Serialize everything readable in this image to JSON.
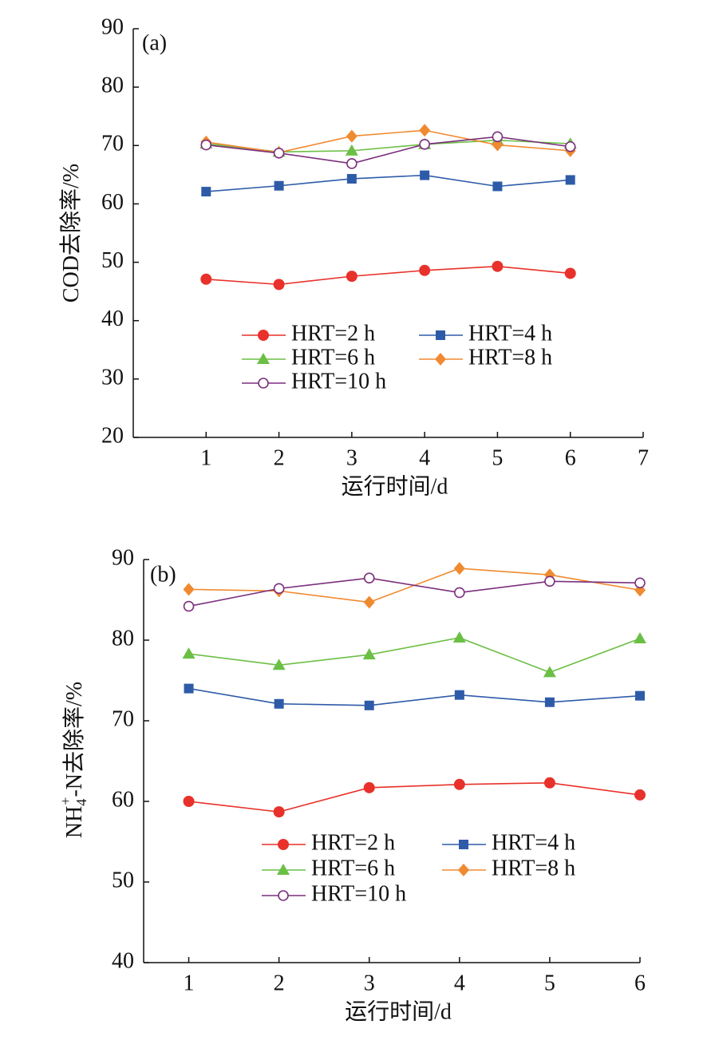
{
  "chart_data": [
    {
      "type": "line",
      "annotation": "(a)",
      "xlabel": "运行时间/d",
      "ylabel": [
        "COD去除率/%"
      ],
      "x": [
        1,
        2,
        3,
        4,
        5,
        6
      ],
      "xlim": [
        0,
        7
      ],
      "xticks": [
        1,
        2,
        3,
        4,
        5,
        6,
        7
      ],
      "ylim": [
        20,
        90
      ],
      "yticks": [
        20,
        30,
        40,
        50,
        60,
        70,
        80,
        90
      ],
      "series": [
        {
          "name": "HRT=2 h",
          "color": "#e8312a",
          "marker": "circle",
          "values": [
            47.1,
            46.2,
            47.6,
            48.6,
            49.3,
            48.1
          ]
        },
        {
          "name": "HRT=4 h",
          "color": "#2e5ba8",
          "marker": "square",
          "values": [
            62.1,
            63.1,
            64.3,
            64.9,
            63.0,
            64.1
          ]
        },
        {
          "name": "HRT=6 h",
          "color": "#6cbf45",
          "marker": "triangle",
          "values": [
            70.3,
            68.9,
            69.1,
            70.2,
            70.9,
            70.3
          ]
        },
        {
          "name": "HRT=8 h",
          "color": "#f08a30",
          "marker": "diamond",
          "values": [
            70.6,
            68.8,
            71.6,
            72.6,
            70.1,
            69.1
          ]
        },
        {
          "name": "HRT=10 h",
          "color": "#7b2f7d",
          "marker": "open-circle",
          "values": [
            70.1,
            68.7,
            66.9,
            70.2,
            71.5,
            69.8
          ]
        }
      ]
    },
    {
      "type": "line",
      "annotation": "(b)",
      "xlabel": "运行时间/d",
      "ylabel": [
        "NH",
        "4",
        "+",
        "-N去除率/%"
      ],
      "x": [
        1,
        2,
        3,
        4,
        5,
        6
      ],
      "xlim": [
        0.5,
        6
      ],
      "xticks": [
        1,
        2,
        3,
        4,
        5,
        6
      ],
      "ylim": [
        40,
        90
      ],
      "yticks": [
        40,
        50,
        60,
        70,
        80,
        90
      ],
      "series": [
        {
          "name": "HRT=2 h",
          "color": "#e8312a",
          "marker": "circle",
          "values": [
            60.0,
            58.7,
            61.7,
            62.1,
            62.3,
            60.8
          ]
        },
        {
          "name": "HRT=4 h",
          "color": "#2e5ba8",
          "marker": "square",
          "values": [
            74.0,
            72.1,
            71.9,
            73.2,
            72.3,
            73.1
          ]
        },
        {
          "name": "HRT=6 h",
          "color": "#6cbf45",
          "marker": "triangle",
          "values": [
            78.3,
            76.9,
            78.2,
            80.3,
            76.0,
            80.2
          ]
        },
        {
          "name": "HRT=8 h",
          "color": "#f08a30",
          "marker": "diamond",
          "values": [
            86.3,
            86.1,
            84.7,
            88.9,
            88.1,
            86.2
          ]
        },
        {
          "name": "HRT=10 h",
          "color": "#7b2f7d",
          "marker": "open-circle",
          "values": [
            84.2,
            86.4,
            87.7,
            85.9,
            87.3,
            87.1
          ]
        }
      ]
    }
  ]
}
